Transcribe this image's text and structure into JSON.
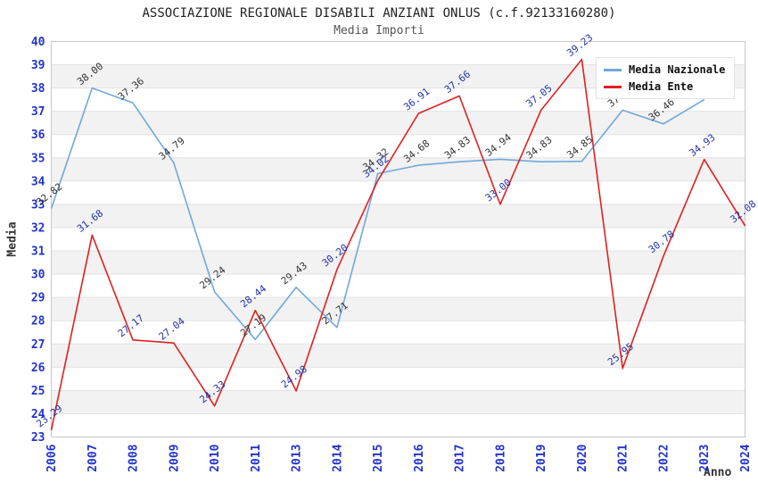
{
  "chart_data": {
    "type": "line",
    "title": "ASSOCIAZIONE REGIONALE DISABILI ANZIANI ONLUS (c.f.92133160280)",
    "subtitle": "Media Importi",
    "xlabel": "Anno",
    "ylabel": "Media",
    "ylim": [
      23,
      40
    ],
    "yticks": [
      23,
      24,
      25,
      26,
      27,
      28,
      29,
      30,
      31,
      32,
      33,
      34,
      35,
      36,
      37,
      38,
      39,
      40
    ],
    "grid": "horizontal-bands",
    "legend_position": "top-right",
    "x": [
      "2006",
      "2007",
      "2008",
      "2009",
      "2010",
      "2011",
      "2013",
      "2014",
      "2015",
      "2016",
      "2017",
      "2018",
      "2019",
      "2020",
      "2021",
      "2022",
      "2023",
      "2024"
    ],
    "series": [
      {
        "id": "media-nazionale",
        "name": "Media Nazionale",
        "color": "#6FA8DC",
        "label_color": "#333333",
        "values": [
          32.82,
          38.0,
          37.36,
          34.79,
          29.24,
          27.19,
          29.43,
          27.71,
          34.32,
          34.68,
          34.83,
          34.94,
          34.83,
          34.85,
          37.05,
          36.46,
          37.5,
          null
        ],
        "labels": [
          "32.82",
          "38.00",
          "37.36",
          "34.79",
          "29.24",
          "27.19",
          "29.43",
          "27.71",
          "34.32",
          "34.68",
          "34.83",
          "34.94",
          "34.83",
          "34.85",
          "37.05",
          "36.46",
          "37.5",
          ""
        ]
      },
      {
        "id": "media-ente",
        "name": "Media Ente",
        "color": "#E02020",
        "label_color": "#2233AA",
        "values": [
          23.29,
          31.68,
          27.17,
          27.04,
          24.33,
          28.44,
          24.98,
          30.2,
          34.02,
          36.91,
          37.66,
          33.0,
          37.05,
          39.23,
          25.95,
          30.78,
          34.93,
          32.08
        ],
        "labels": [
          "23.29",
          "31.68",
          "27.17",
          "27.04",
          "24.33",
          "28.44",
          "24.98",
          "30.20",
          "34.02",
          "36.91",
          "37.66",
          "33.00",
          "37.05",
          "39.23",
          "25.95",
          "30.78",
          "34.93",
          "32.08"
        ]
      }
    ],
    "styles": {
      "band_color": "#f2f2f2",
      "grid_color": "#e2e2e2",
      "border_color": "#c8c8c8",
      "tick_color": "#2233cc"
    }
  }
}
